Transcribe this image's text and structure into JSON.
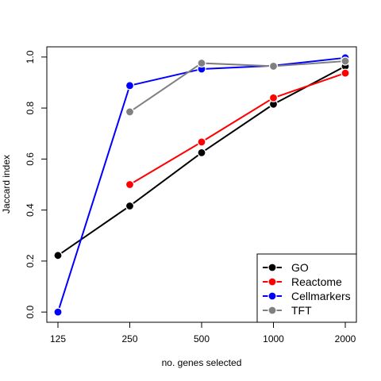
{
  "chart_data": {
    "type": "line",
    "title": "",
    "xlabel": "no. genes selected",
    "ylabel": "Jaccard index",
    "categories": [
      "125",
      "250",
      "500",
      "1000",
      "2000"
    ],
    "ylim": [
      -0.04,
      1.04
    ],
    "yticks": [
      0.0,
      0.2,
      0.4,
      0.6,
      0.8,
      1.0
    ],
    "ytick_labels": [
      "0.0",
      "0.2",
      "0.4",
      "0.6",
      "0.8",
      "1.0"
    ],
    "legend_position": "bottom-right",
    "grid": false,
    "series": [
      {
        "name": "GO",
        "color": "#000000",
        "values": [
          0.222,
          0.416,
          0.625,
          0.815,
          0.964
        ]
      },
      {
        "name": "Reactome",
        "color": "#ff0000",
        "values": [
          null,
          0.5,
          0.667,
          0.84,
          0.937
        ]
      },
      {
        "name": "Cellmarkers",
        "color": "#0000ff",
        "values": [
          0.0,
          0.888,
          0.953,
          0.966,
          0.997
        ]
      },
      {
        "name": "TFT",
        "color": "#808080",
        "values": [
          null,
          0.785,
          0.976,
          0.964,
          0.984
        ]
      }
    ]
  }
}
